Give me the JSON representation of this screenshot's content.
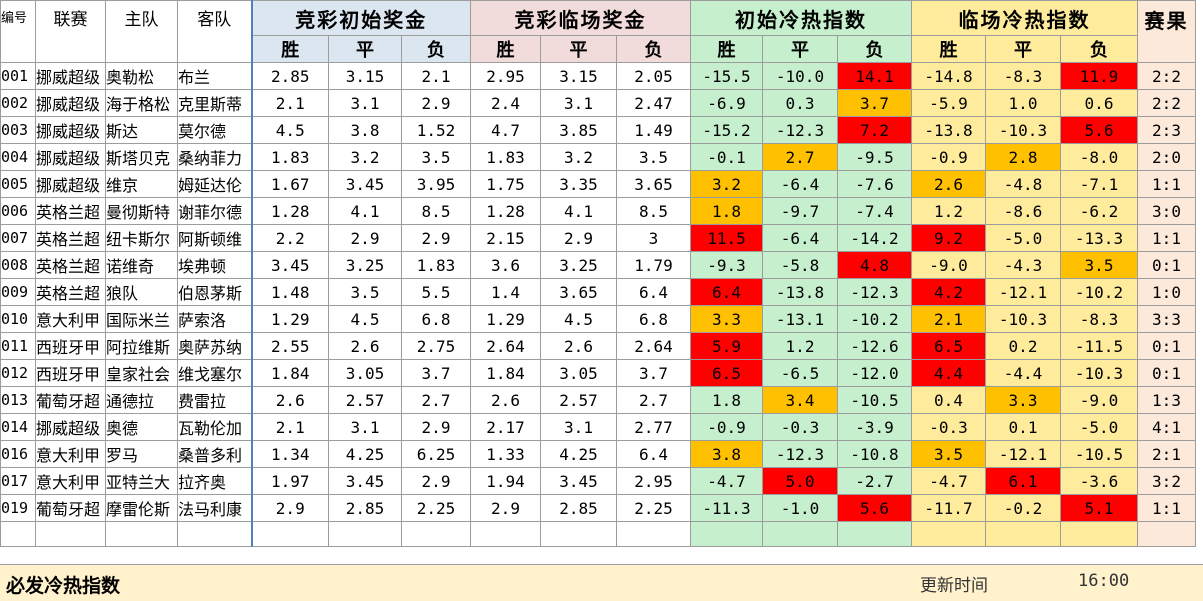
{
  "headers": {
    "id": "编号",
    "league": "联赛",
    "home": "主队",
    "away": "客队",
    "initial_odds": "竞彩初始奖金",
    "final_odds": "竞彩临场奖金",
    "initial_index": "初始冷热指数",
    "final_index": "临场冷热指数",
    "result": "赛果",
    "win": "胜",
    "draw": "平",
    "lose": "负"
  },
  "colors": {
    "odds_bg": "#dce6f1",
    "final_odds_bg": "#f2dcdb",
    "initial_index_bg": "#c6efce",
    "final_index_bg": "#ffeb9c",
    "hot_red": "#ff0000",
    "warm_orange": "#ffc000",
    "result_bg": "#fde9d9"
  },
  "rows": [
    {
      "id": "001",
      "league": "挪威超级",
      "home": "奥勒松",
      "away": "布兰",
      "io": [
        "2.85",
        "3.15",
        "2.1"
      ],
      "fo": [
        "2.95",
        "3.15",
        "2.05"
      ],
      "ii": [
        "-15.5",
        "-10.0",
        "14.1"
      ],
      "iic": [
        "",
        "",
        "red"
      ],
      "fi": [
        "-14.8",
        "-8.3",
        "11.9"
      ],
      "fic": [
        "",
        "",
        "red"
      ],
      "res": "2:2"
    },
    {
      "id": "002",
      "league": "挪威超级",
      "home": "海于格松",
      "away": "克里斯蒂",
      "io": [
        "2.1",
        "3.1",
        "2.9"
      ],
      "fo": [
        "2.4",
        "3.1",
        "2.47"
      ],
      "ii": [
        "-6.9",
        "0.3",
        "3.7"
      ],
      "iic": [
        "",
        "",
        "orange"
      ],
      "fi": [
        "-5.9",
        "1.0",
        "0.6"
      ],
      "fic": [
        "",
        "",
        ""
      ],
      "res": "2:2"
    },
    {
      "id": "003",
      "league": "挪威超级",
      "home": "斯达",
      "away": "莫尔德",
      "io": [
        "4.5",
        "3.8",
        "1.52"
      ],
      "fo": [
        "4.7",
        "3.85",
        "1.49"
      ],
      "ii": [
        "-15.2",
        "-12.3",
        "7.2"
      ],
      "iic": [
        "",
        "",
        "red"
      ],
      "fi": [
        "-13.8",
        "-10.3",
        "5.6"
      ],
      "fic": [
        "",
        "",
        "red"
      ],
      "res": "2:3"
    },
    {
      "id": "004",
      "league": "挪威超级",
      "home": "斯塔贝克",
      "away": "桑纳菲力",
      "io": [
        "1.83",
        "3.2",
        "3.5"
      ],
      "fo": [
        "1.83",
        "3.2",
        "3.5"
      ],
      "ii": [
        "-0.1",
        "2.7",
        "-9.5"
      ],
      "iic": [
        "",
        "orange",
        ""
      ],
      "fi": [
        "-0.9",
        "2.8",
        "-8.0"
      ],
      "fic": [
        "",
        "orange",
        ""
      ],
      "res": "2:0"
    },
    {
      "id": "005",
      "league": "挪威超级",
      "home": "维京",
      "away": "姆延达伦",
      "io": [
        "1.67",
        "3.45",
        "3.95"
      ],
      "fo": [
        "1.75",
        "3.35",
        "3.65"
      ],
      "ii": [
        "3.2",
        "-6.4",
        "-7.6"
      ],
      "iic": [
        "orange",
        "",
        ""
      ],
      "fi": [
        "2.6",
        "-4.8",
        "-7.1"
      ],
      "fic": [
        "orange",
        "",
        ""
      ],
      "res": "1:1"
    },
    {
      "id": "006",
      "league": "英格兰超",
      "home": "曼彻斯特",
      "away": "谢菲尔德",
      "io": [
        "1.28",
        "4.1",
        "8.5"
      ],
      "fo": [
        "1.28",
        "4.1",
        "8.5"
      ],
      "ii": [
        "1.8",
        "-9.7",
        "-7.4"
      ],
      "iic": [
        "orange",
        "",
        ""
      ],
      "fi": [
        "1.2",
        "-8.6",
        "-6.2"
      ],
      "fic": [
        "",
        "",
        ""
      ],
      "res": "3:0"
    },
    {
      "id": "007",
      "league": "英格兰超",
      "home": "纽卡斯尔",
      "away": "阿斯顿维",
      "io": [
        "2.2",
        "2.9",
        "2.9"
      ],
      "fo": [
        "2.15",
        "2.9",
        "3"
      ],
      "ii": [
        "11.5",
        "-6.4",
        "-14.2"
      ],
      "iic": [
        "red",
        "",
        ""
      ],
      "fi": [
        "9.2",
        "-5.0",
        "-13.3"
      ],
      "fic": [
        "red",
        "",
        ""
      ],
      "res": "1:1"
    },
    {
      "id": "008",
      "league": "英格兰超",
      "home": "诺维奇",
      "away": "埃弗顿",
      "io": [
        "3.45",
        "3.25",
        "1.83"
      ],
      "fo": [
        "3.6",
        "3.25",
        "1.79"
      ],
      "ii": [
        "-9.3",
        "-5.8",
        "4.8"
      ],
      "iic": [
        "",
        "",
        "red"
      ],
      "fi": [
        "-9.0",
        "-4.3",
        "3.5"
      ],
      "fic": [
        "",
        "",
        "orange"
      ],
      "res": "0:1"
    },
    {
      "id": "009",
      "league": "英格兰超",
      "home": "狼队",
      "away": "伯恩茅斯",
      "io": [
        "1.48",
        "3.5",
        "5.5"
      ],
      "fo": [
        "1.4",
        "3.65",
        "6.4"
      ],
      "ii": [
        "6.4",
        "-13.8",
        "-12.3"
      ],
      "iic": [
        "red",
        "",
        ""
      ],
      "fi": [
        "4.2",
        "-12.1",
        "-10.2"
      ],
      "fic": [
        "red",
        "",
        ""
      ],
      "res": "1:0"
    },
    {
      "id": "010",
      "league": "意大利甲",
      "home": "国际米兰",
      "away": "萨索洛",
      "io": [
        "1.29",
        "4.5",
        "6.8"
      ],
      "fo": [
        "1.29",
        "4.5",
        "6.8"
      ],
      "ii": [
        "3.3",
        "-13.1",
        "-10.2"
      ],
      "iic": [
        "orange",
        "",
        ""
      ],
      "fi": [
        "2.1",
        "-10.3",
        "-8.3"
      ],
      "fic": [
        "orange",
        "",
        ""
      ],
      "res": "3:3"
    },
    {
      "id": "011",
      "league": "西班牙甲",
      "home": "阿拉维斯",
      "away": "奥萨苏纳",
      "io": [
        "2.55",
        "2.6",
        "2.75"
      ],
      "fo": [
        "2.64",
        "2.6",
        "2.64"
      ],
      "ii": [
        "5.9",
        "1.2",
        "-12.6"
      ],
      "iic": [
        "red",
        "",
        ""
      ],
      "fi": [
        "6.5",
        "0.2",
        "-11.5"
      ],
      "fic": [
        "red",
        "",
        ""
      ],
      "res": "0:1"
    },
    {
      "id": "012",
      "league": "西班牙甲",
      "home": "皇家社会",
      "away": "维戈塞尔",
      "io": [
        "1.84",
        "3.05",
        "3.7"
      ],
      "fo": [
        "1.84",
        "3.05",
        "3.7"
      ],
      "ii": [
        "6.5",
        "-6.5",
        "-12.0"
      ],
      "iic": [
        "red",
        "",
        ""
      ],
      "fi": [
        "4.4",
        "-4.4",
        "-10.3"
      ],
      "fic": [
        "red",
        "",
        ""
      ],
      "res": "0:1"
    },
    {
      "id": "013",
      "league": "葡萄牙超",
      "home": "通德拉",
      "away": "费雷拉",
      "io": [
        "2.6",
        "2.57",
        "2.7"
      ],
      "fo": [
        "2.6",
        "2.57",
        "2.7"
      ],
      "ii": [
        "1.8",
        "3.4",
        "-10.5"
      ],
      "iic": [
        "",
        "orange",
        ""
      ],
      "fi": [
        "0.4",
        "3.3",
        "-9.0"
      ],
      "fic": [
        "",
        "orange",
        ""
      ],
      "res": "1:3"
    },
    {
      "id": "014",
      "league": "挪威超级",
      "home": "奥德",
      "away": "瓦勒伦加",
      "io": [
        "2.1",
        "3.1",
        "2.9"
      ],
      "fo": [
        "2.17",
        "3.1",
        "2.77"
      ],
      "ii": [
        "-0.9",
        "-0.3",
        "-3.9"
      ],
      "iic": [
        "",
        "",
        ""
      ],
      "fi": [
        "-0.3",
        "0.1",
        "-5.0"
      ],
      "fic": [
        "",
        "",
        ""
      ],
      "res": "4:1"
    },
    {
      "id": "016",
      "league": "意大利甲",
      "home": "罗马",
      "away": "桑普多利",
      "io": [
        "1.34",
        "4.25",
        "6.25"
      ],
      "fo": [
        "1.33",
        "4.25",
        "6.4"
      ],
      "ii": [
        "3.8",
        "-12.3",
        "-10.8"
      ],
      "iic": [
        "orange",
        "",
        ""
      ],
      "fi": [
        "3.5",
        "-12.1",
        "-10.5"
      ],
      "fic": [
        "orange",
        "",
        ""
      ],
      "res": "2:1"
    },
    {
      "id": "017",
      "league": "意大利甲",
      "home": "亚特兰大",
      "away": "拉齐奥",
      "io": [
        "1.97",
        "3.45",
        "2.9"
      ],
      "fo": [
        "1.94",
        "3.45",
        "2.95"
      ],
      "ii": [
        "-4.7",
        "5.0",
        "-2.7"
      ],
      "iic": [
        "",
        "red",
        ""
      ],
      "fi": [
        "-4.7",
        "6.1",
        "-3.6"
      ],
      "fic": [
        "",
        "red",
        ""
      ],
      "res": "3:2"
    },
    {
      "id": "019",
      "league": "葡萄牙超",
      "home": "摩雷伦斯",
      "away": "法马利康",
      "io": [
        "2.9",
        "2.85",
        "2.25"
      ],
      "fo": [
        "2.9",
        "2.85",
        "2.25"
      ],
      "ii": [
        "-11.3",
        "-1.0",
        "5.6"
      ],
      "iic": [
        "",
        "",
        "red"
      ],
      "fi": [
        "-11.7",
        "-0.2",
        "5.1"
      ],
      "fic": [
        "",
        "",
        "red"
      ],
      "res": "1:1"
    }
  ],
  "footer": {
    "title": "必发冷热指数",
    "update_label": "更新时间",
    "update_time": "16:00"
  }
}
